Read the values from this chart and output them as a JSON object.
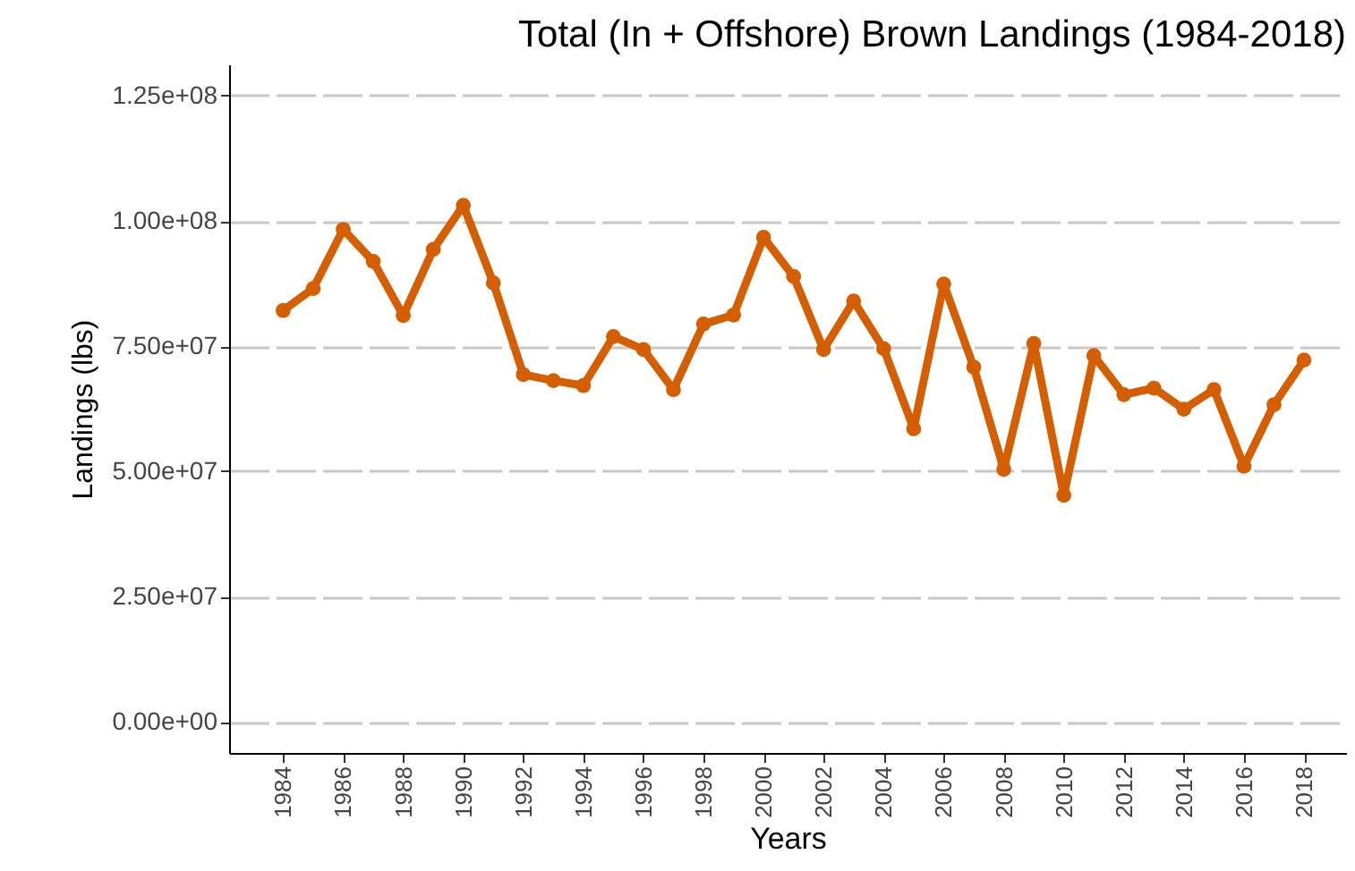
{
  "chart_data": {
    "type": "line",
    "title": "Total (In + Offshore) Brown Landings (1984-2018)",
    "xlabel": "Years",
    "ylabel": "Landings (lbs)",
    "x": [
      1984,
      1985,
      1986,
      1987,
      1988,
      1989,
      1990,
      1991,
      1992,
      1993,
      1994,
      1995,
      1996,
      1997,
      1998,
      1999,
      2000,
      2001,
      2002,
      2003,
      2004,
      2005,
      2006,
      2007,
      2008,
      2009,
      2010,
      2011,
      2012,
      2013,
      2014,
      2015,
      2016,
      2017,
      2018
    ],
    "series": [
      {
        "color": "#d55e00",
        "values": [
          82100000,
          86500000,
          98300000,
          91900000,
          81100000,
          94300000,
          103100000,
          87600000,
          69300000,
          68100000,
          67100000,
          76900000,
          74300000,
          66300000,
          79400000,
          81200000,
          96700000,
          88900000,
          74300000,
          84000000,
          74500000,
          58500000,
          87400000,
          70800000,
          50400000,
          75500000,
          45200000,
          73100000,
          65300000,
          66600000,
          62400000,
          66300000,
          51000000,
          63300000,
          72200000
        ]
      }
    ],
    "xlim": [
      1982.2,
      2019.4
    ],
    "xticks": [
      1984,
      1986,
      1988,
      1990,
      1992,
      1994,
      1996,
      1998,
      2000,
      2002,
      2004,
      2006,
      2008,
      2010,
      2012,
      2014,
      2016,
      2018
    ],
    "ylim": [
      -6250000,
      131250000
    ],
    "yticks": [
      {
        "value": 0,
        "label": "0.00e+00"
      },
      {
        "value": 25000000,
        "label": "2.50e+07"
      },
      {
        "value": 50000000,
        "label": "5.00e+07"
      },
      {
        "value": 75000000,
        "label": "7.50e+07"
      },
      {
        "value": 100000000,
        "label": "1.00e+08"
      },
      {
        "value": 125000000,
        "label": "1.25e+08"
      }
    ],
    "grid": "y",
    "marker": "circle",
    "line_style": "solid"
  }
}
